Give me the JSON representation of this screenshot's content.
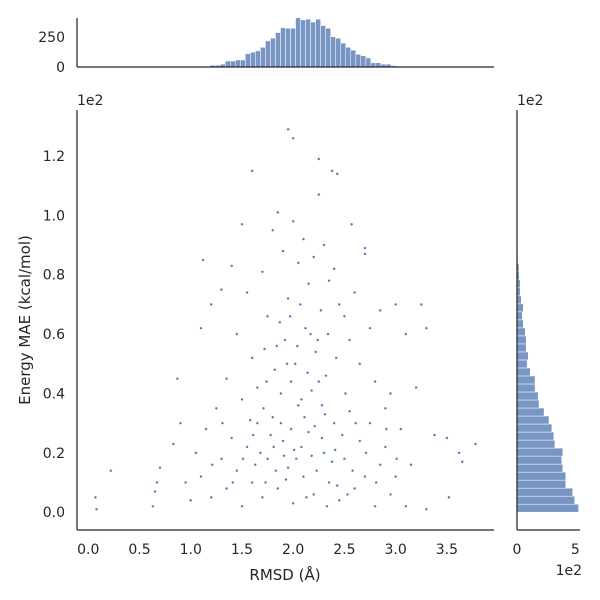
{
  "chart_data": {
    "type": "scatter",
    "style": "seaborn jointplot with marginal histograms",
    "color": "#4c72b0",
    "grid": false,
    "xlabel": "RMSD (Å)",
    "ylabel": "Energy MAE (kcal/mol)",
    "x_ticks": [
      "0.0",
      "0.5",
      "1.0",
      "1.5",
      "2.0",
      "2.5",
      "3.0",
      "3.5"
    ],
    "x_tick_values": [
      0,
      0.5,
      1,
      1.5,
      2,
      2.5,
      3,
      3.5
    ],
    "y_ticks": [
      "0.0",
      "0.2",
      "0.4",
      "0.6",
      "0.8",
      "1.0",
      "1.2"
    ],
    "y_tick_values": [
      0,
      0.2,
      0.4,
      0.6,
      0.8,
      1.0,
      1.2
    ],
    "y_offset_text": "1e2",
    "xlim": [
      -0.11,
      3.96
    ],
    "ylim": [
      -0.06,
      1.355
    ],
    "points": [
      [
        0.07,
        0.05
      ],
      [
        0.08,
        0.01
      ],
      [
        0.22,
        0.14
      ],
      [
        0.65,
        0.07
      ],
      [
        0.67,
        0.1
      ],
      [
        0.7,
        0.15
      ],
      [
        0.63,
        0.02
      ],
      [
        0.87,
        0.45
      ],
      [
        0.83,
        0.23
      ],
      [
        0.9,
        0.3
      ],
      [
        0.95,
        0.1
      ],
      [
        1.0,
        0.04
      ],
      [
        1.12,
        0.85
      ],
      [
        1.6,
        1.15
      ],
      [
        1.95,
        1.29
      ],
      [
        2.0,
        1.26
      ],
      [
        2.25,
        1.19
      ],
      [
        2.38,
        1.15
      ],
      [
        2.43,
        1.14
      ],
      [
        2.25,
        1.07
      ],
      [
        1.5,
        0.97
      ],
      [
        2.57,
        0.97
      ],
      [
        3.25,
        0.7
      ],
      [
        3.3,
        0.62
      ],
      [
        3.38,
        0.26
      ],
      [
        3.5,
        0.25
      ],
      [
        3.62,
        0.2
      ],
      [
        3.78,
        0.23
      ],
      [
        3.52,
        0.05
      ],
      [
        3.65,
        0.17
      ],
      [
        3.3,
        0.01
      ],
      [
        3.1,
        0.02
      ],
      [
        2.7,
        0.89
      ],
      [
        2.7,
        0.87
      ],
      [
        1.1,
        0.62
      ],
      [
        1.2,
        0.7
      ],
      [
        1.3,
        0.75
      ],
      [
        1.35,
        0.45
      ],
      [
        1.4,
        0.83
      ],
      [
        1.45,
        0.6
      ],
      [
        1.5,
        0.38
      ],
      [
        1.55,
        0.74
      ],
      [
        1.6,
        0.52
      ],
      [
        1.65,
        0.3
      ],
      [
        1.7,
        0.81
      ],
      [
        1.75,
        0.66
      ],
      [
        1.8,
        0.95
      ],
      [
        1.85,
        1.01
      ],
      [
        1.9,
        0.88
      ],
      [
        1.95,
        0.72
      ],
      [
        2.0,
        0.98
      ],
      [
        2.05,
        0.84
      ],
      [
        2.1,
        0.92
      ],
      [
        2.15,
        0.77
      ],
      [
        2.2,
        0.86
      ],
      [
        2.3,
        0.9
      ],
      [
        2.35,
        0.78
      ],
      [
        2.4,
        0.82
      ],
      [
        2.45,
        0.7
      ],
      [
        2.5,
        0.66
      ],
      [
        2.55,
        0.58
      ],
      [
        2.6,
        0.74
      ],
      [
        2.65,
        0.5
      ],
      [
        2.75,
        0.62
      ],
      [
        2.8,
        0.44
      ],
      [
        2.85,
        0.68
      ],
      [
        2.9,
        0.35
      ],
      [
        2.95,
        0.4
      ],
      [
        3.0,
        0.7
      ],
      [
        3.05,
        0.28
      ],
      [
        3.1,
        0.6
      ],
      [
        3.15,
        0.16
      ],
      [
        3.2,
        0.42
      ],
      [
        1.05,
        0.2
      ],
      [
        1.1,
        0.12
      ],
      [
        1.15,
        0.28
      ],
      [
        1.2,
        0.05
      ],
      [
        1.25,
        0.35
      ],
      [
        1.3,
        0.18
      ],
      [
        1.35,
        0.08
      ],
      [
        1.4,
        0.25
      ],
      [
        1.45,
        0.14
      ],
      [
        1.5,
        0.02
      ],
      [
        1.55,
        0.22
      ],
      [
        1.6,
        0.1
      ],
      [
        1.65,
        0.42
      ],
      [
        1.7,
        0.05
      ],
      [
        1.75,
        0.18
      ],
      [
        1.8,
        0.32
      ],
      [
        1.85,
        0.08
      ],
      [
        1.9,
        0.24
      ],
      [
        1.95,
        0.15
      ],
      [
        2.0,
        0.03
      ],
      [
        2.05,
        0.36
      ],
      [
        2.1,
        0.12
      ],
      [
        2.15,
        0.27
      ],
      [
        2.2,
        0.06
      ],
      [
        2.25,
        0.44
      ],
      [
        2.3,
        0.2
      ],
      [
        2.35,
        0.1
      ],
      [
        2.4,
        0.3
      ],
      [
        2.45,
        0.04
      ],
      [
        2.5,
        0.18
      ],
      [
        2.55,
        0.34
      ],
      [
        2.6,
        0.08
      ],
      [
        2.65,
        0.24
      ],
      [
        2.7,
        0.12
      ],
      [
        2.75,
        0.3
      ],
      [
        2.8,
        0.02
      ],
      [
        2.85,
        0.16
      ],
      [
        2.9,
        0.22
      ],
      [
        2.95,
        0.06
      ],
      [
        3.0,
        0.12
      ],
      [
        1.72,
        0.55
      ],
      [
        1.82,
        0.48
      ],
      [
        1.92,
        0.58
      ],
      [
        2.02,
        0.5
      ],
      [
        2.12,
        0.62
      ],
      [
        2.22,
        0.54
      ],
      [
        2.32,
        0.46
      ],
      [
        2.42,
        0.52
      ],
      [
        1.88,
        0.4
      ],
      [
        1.98,
        0.44
      ],
      [
        2.08,
        0.38
      ],
      [
        2.18,
        0.41
      ],
      [
        2.28,
        0.36
      ],
      [
        1.78,
        0.26
      ],
      [
        1.88,
        0.3
      ],
      [
        1.98,
        0.28
      ],
      [
        2.08,
        0.22
      ],
      [
        2.18,
        0.19
      ],
      [
        2.28,
        0.25
      ],
      [
        2.38,
        0.17
      ],
      [
        1.68,
        0.2
      ],
      [
        1.58,
        0.31
      ],
      [
        2.48,
        0.26
      ],
      [
        2.58,
        0.14
      ],
      [
        1.93,
        0.11
      ],
      [
        2.03,
        0.18
      ],
      [
        2.13,
        0.05
      ],
      [
        2.23,
        0.14
      ],
      [
        2.33,
        0.02
      ],
      [
        1.83,
        0.14
      ],
      [
        1.73,
        0.1
      ],
      [
        1.63,
        0.16
      ],
      [
        2.43,
        0.09
      ],
      [
        2.53,
        0.06
      ],
      [
        1.97,
        0.66
      ],
      [
        2.07,
        0.7
      ],
      [
        2.17,
        0.6
      ],
      [
        2.27,
        0.68
      ],
      [
        1.87,
        0.64
      ],
      [
        2.11,
        0.32
      ],
      [
        2.01,
        0.21
      ],
      [
        1.91,
        0.19
      ],
      [
        2.21,
        0.29
      ],
      [
        2.31,
        0.33
      ],
      [
        1.81,
        0.22
      ],
      [
        2.41,
        0.21
      ],
      [
        1.71,
        0.35
      ],
      [
        2.51,
        0.4
      ],
      [
        1.61,
        0.26
      ],
      [
        2.61,
        0.3
      ],
      [
        1.51,
        0.18
      ],
      [
        2.71,
        0.2
      ],
      [
        1.41,
        0.1
      ],
      [
        2.81,
        0.1
      ],
      [
        1.31,
        0.3
      ],
      [
        2.91,
        0.28
      ],
      [
        1.21,
        0.16
      ],
      [
        3.01,
        0.18
      ],
      [
        2.14,
        0.47
      ],
      [
        2.04,
        0.56
      ],
      [
        1.94,
        0.5
      ],
      [
        2.24,
        0.58
      ],
      [
        1.84,
        0.56
      ],
      [
        2.34,
        0.6
      ],
      [
        1.74,
        0.44
      ]
    ],
    "top_histogram": {
      "ylim": [
        0,
        410
      ],
      "y_ticks": [
        "0",
        "250"
      ],
      "y_tick_values": [
        0,
        250
      ],
      "bin_start": 1.19,
      "bin_width": 0.049,
      "counts": [
        15,
        15,
        24,
        50,
        50,
        59,
        59,
        112,
        124,
        135,
        165,
        218,
        241,
        288,
        329,
        324,
        324,
        412,
        394,
        400,
        376,
        400,
        347,
        324,
        253,
        241,
        200,
        165,
        141,
        106,
        94,
        76,
        35,
        35,
        24,
        24,
        12
      ]
    },
    "right_histogram": {
      "xlim": [
        0,
        540
      ],
      "x_ticks": [
        "0",
        "5"
      ],
      "x_tick_values": [
        0,
        500
      ],
      "x_offset_text": "1e2",
      "y_offset_text": "1e2",
      "bin_start": 0,
      "bin_width": 0.027,
      "counts": [
        528,
        494,
        477,
        418,
        418,
        393,
        384,
        393,
        325,
        316,
        299,
        274,
        232,
        189,
        181,
        155,
        155,
        113,
        87,
        96,
        79,
        79,
        71,
        54,
        45,
        54,
        37,
        28,
        28,
        20,
        17,
        8,
        6,
        4,
        3,
        2,
        2,
        1,
        1,
        1,
        1,
        1,
        1,
        1,
        0,
        1,
        1,
        0
      ]
    }
  }
}
